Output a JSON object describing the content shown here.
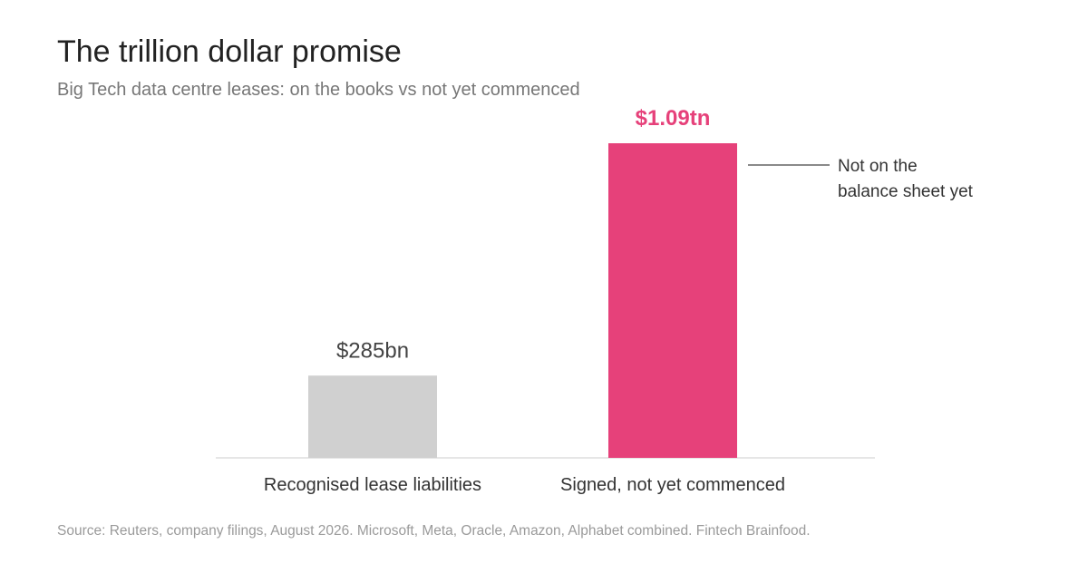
{
  "chart_data": {
    "type": "bar",
    "title": "The trillion dollar promise",
    "subtitle": "Big Tech data centre leases: on the books vs not yet commenced",
    "categories": [
      "Recognised lease liabilities",
      "Signed, not yet commenced"
    ],
    "values": [
      285,
      1090
    ],
    "units": "USD billions",
    "value_labels": [
      "$285bn",
      "$1.09tn"
    ],
    "bar_colors": [
      "#d0d0d0",
      "#e6417a"
    ],
    "value_label_colors": [
      "#444444",
      "#e6417a"
    ],
    "annotation": {
      "target_index": 1,
      "lines": [
        "Not on the",
        "balance sheet yet"
      ]
    },
    "xlabel": "",
    "ylabel": "",
    "ylim": [
      0,
      1090
    ],
    "grid": false,
    "legend": "none",
    "source": "Source: Reuters, company filings, August 2026. Microsoft, Meta, Oracle, Amazon, Alphabet combined. Fintech Brainfood."
  }
}
